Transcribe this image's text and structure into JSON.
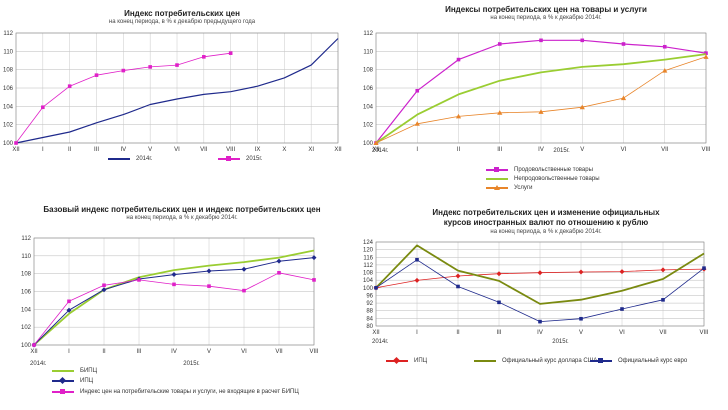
{
  "chart_data": [
    {
      "type": "line",
      "title": "Индекс потребительских цен",
      "subtitle": "на конец периода, в % к декабрю предыдущего года",
      "categories": [
        "XII",
        "I",
        "II",
        "III",
        "IV",
        "V",
        "VI",
        "VII",
        "VIII",
        "IX",
        "X",
        "XI",
        "XII"
      ],
      "ylim": [
        100,
        112
      ],
      "yticks": [
        100,
        102,
        104,
        106,
        108,
        110,
        112
      ],
      "series": [
        {
          "name": "2014г.",
          "color": "#1f2a8c",
          "marker": "none",
          "values": [
            100,
            100.6,
            101.2,
            102.2,
            103.1,
            104.2,
            104.8,
            105.3,
            105.6,
            106.2,
            107.1,
            108.5,
            111.4
          ]
        },
        {
          "name": "2015г.",
          "color": "#e020c8",
          "marker": "square",
          "values": [
            100,
            103.9,
            106.2,
            107.4,
            107.9,
            108.3,
            108.5,
            109.4,
            109.8,
            null,
            null,
            null,
            null
          ]
        }
      ]
    },
    {
      "type": "line",
      "title": "Индексы потребительских цен на товары и услуги",
      "subtitle": "на конец периода, в % к декабрю 2014г.",
      "categories": [
        "XII",
        "I",
        "II",
        "III",
        "IV",
        "V",
        "VI",
        "VII",
        "VIII"
      ],
      "category_groups": [
        "2014г.",
        "2015г."
      ],
      "ylim": [
        100,
        112
      ],
      "yticks": [
        100,
        102,
        104,
        106,
        108,
        110,
        112
      ],
      "series": [
        {
          "name": "Продовольственные товары",
          "color": "#cc22cc",
          "marker": "square",
          "values": [
            100,
            105.7,
            109.1,
            110.8,
            111.2,
            111.2,
            110.8,
            110.5,
            109.8
          ]
        },
        {
          "name": "Непродовольственные товары",
          "color": "#9acd32",
          "marker": "none",
          "values": [
            100,
            103.1,
            105.3,
            106.8,
            107.7,
            108.3,
            108.6,
            109.1,
            109.7
          ]
        },
        {
          "name": "Услуги",
          "color": "#e8852a",
          "marker": "triangle",
          "values": [
            100,
            102.1,
            102.9,
            103.3,
            103.4,
            103.9,
            104.9,
            107.9,
            109.4
          ]
        }
      ]
    },
    {
      "type": "line",
      "title": "Базовый индекс потребительских цен и индекс потребительских цен",
      "subtitle": "на конец периода, в % к декабрю 2014г.",
      "categories": [
        "XII",
        "I",
        "II",
        "III",
        "IV",
        "V",
        "VI",
        "VII",
        "VIII"
      ],
      "category_groups": [
        "2014г.",
        "2015г."
      ],
      "ylim": [
        100,
        112
      ],
      "yticks": [
        100,
        102,
        104,
        106,
        108,
        110,
        112
      ],
      "series": [
        {
          "name": "БИПЦ",
          "color": "#9acd32",
          "marker": "none",
          "values": [
            100,
            103.5,
            106.2,
            107.6,
            108.4,
            108.9,
            109.3,
            109.8,
            110.6
          ]
        },
        {
          "name": "ИПЦ",
          "color": "#1f2a8c",
          "marker": "diamond",
          "values": [
            100,
            103.9,
            106.2,
            107.4,
            107.9,
            108.3,
            108.5,
            109.4,
            109.8
          ]
        },
        {
          "name": "Индекс цен на потребительские товары и услуги, не входящие в расчет БИПЦ",
          "color": "#e020c8",
          "marker": "square",
          "values": [
            100,
            104.9,
            106.7,
            107.3,
            106.8,
            106.6,
            106.1,
            108.1,
            107.3
          ]
        }
      ]
    },
    {
      "type": "line",
      "title": "Индекс потребительских цен и изменение официальных курсов иностранных валют по отношению к рублю",
      "subtitle": "на конец периода, в % к декабрю 2014г.",
      "categories": [
        "XII",
        "I",
        "II",
        "III",
        "IV",
        "V",
        "VI",
        "VII",
        "VIII"
      ],
      "category_groups": [
        "2014г.",
        "2015г."
      ],
      "ylim": [
        80,
        124
      ],
      "yticks": [
        80,
        84,
        88,
        92,
        96,
        100,
        104,
        108,
        112,
        116,
        120,
        124
      ],
      "series": [
        {
          "name": "ИПЦ",
          "color": "#dd2222",
          "marker": "diamond",
          "values": [
            100,
            103.9,
            106.2,
            107.4,
            107.9,
            108.3,
            108.5,
            109.4,
            109.8
          ]
        },
        {
          "name": "Официальный курс доллара США",
          "color": "#7a8a10",
          "marker": "none",
          "values": [
            100,
            122.2,
            109.0,
            103.6,
            91.6,
            93.8,
            98.5,
            104.6,
            118.0
          ]
        },
        {
          "name": "Официальный курс евро",
          "color": "#1f2a8c",
          "marker": "square",
          "values": [
            100,
            114.7,
            100.7,
            92.4,
            82.3,
            83.8,
            88.9,
            93.7,
            110.3
          ]
        }
      ]
    }
  ]
}
